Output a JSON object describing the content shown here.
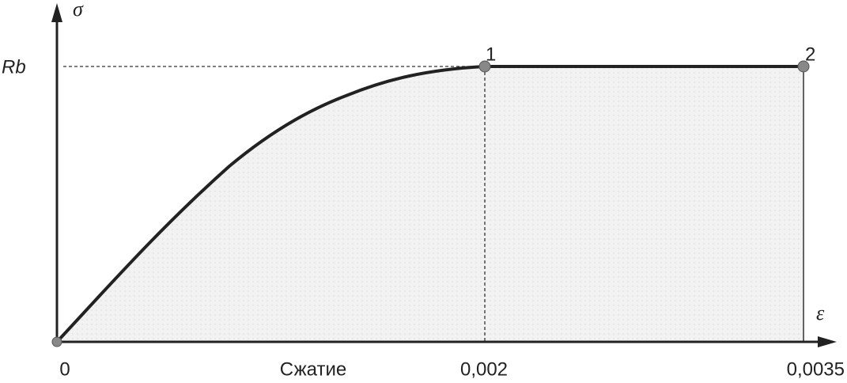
{
  "axes": {
    "y_label": "σ",
    "x_label": "ε"
  },
  "level": {
    "label": "Rb"
  },
  "points": [
    {
      "label": "1"
    },
    {
      "label": "2"
    }
  ],
  "x_ticks": [
    "0",
    "0,002",
    "0,0035"
  ],
  "caption": "Сжатие"
}
